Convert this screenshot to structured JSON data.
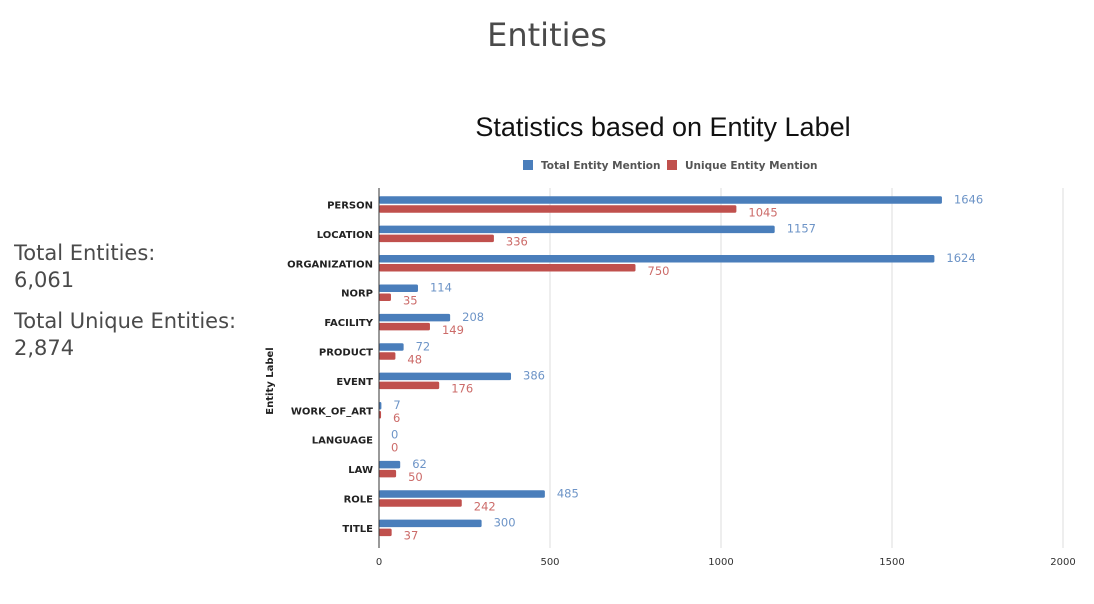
{
  "page": {
    "title": "Entities"
  },
  "stats": {
    "total_label": "Total Entities:",
    "total_value": "6,061",
    "unique_label": "Total Unique Entities:",
    "unique_value": "2,874"
  },
  "colors": {
    "total": "#4a7ebb",
    "unique": "#c0504d",
    "total_label": "#6d94c7",
    "unique_label": "#cc6b69"
  },
  "chart_data": {
    "type": "bar",
    "orientation": "horizontal",
    "title": "Statistics based on Entity Label",
    "xlabel": "",
    "ylabel": "Entity Label",
    "xlim": [
      0,
      2000
    ],
    "xticks": [
      0,
      500,
      1000,
      1500,
      2000
    ],
    "legend_position": "top",
    "grid": true,
    "categories": [
      "PERSON",
      "LOCATION",
      "ORGANIZATION",
      "NORP",
      "FACILITY",
      "PRODUCT",
      "EVENT",
      "WORK_OF_ART",
      "LANGUAGE",
      "LAW",
      "ROLE",
      "TITLE"
    ],
    "series": [
      {
        "name": "Total Entity Mention",
        "values": [
          1646,
          1157,
          1624,
          114,
          208,
          72,
          386,
          7,
          0,
          62,
          485,
          300
        ]
      },
      {
        "name": "Unique Entity Mention",
        "values": [
          1045,
          336,
          750,
          35,
          149,
          48,
          176,
          6,
          0,
          50,
          242,
          37
        ]
      }
    ]
  }
}
